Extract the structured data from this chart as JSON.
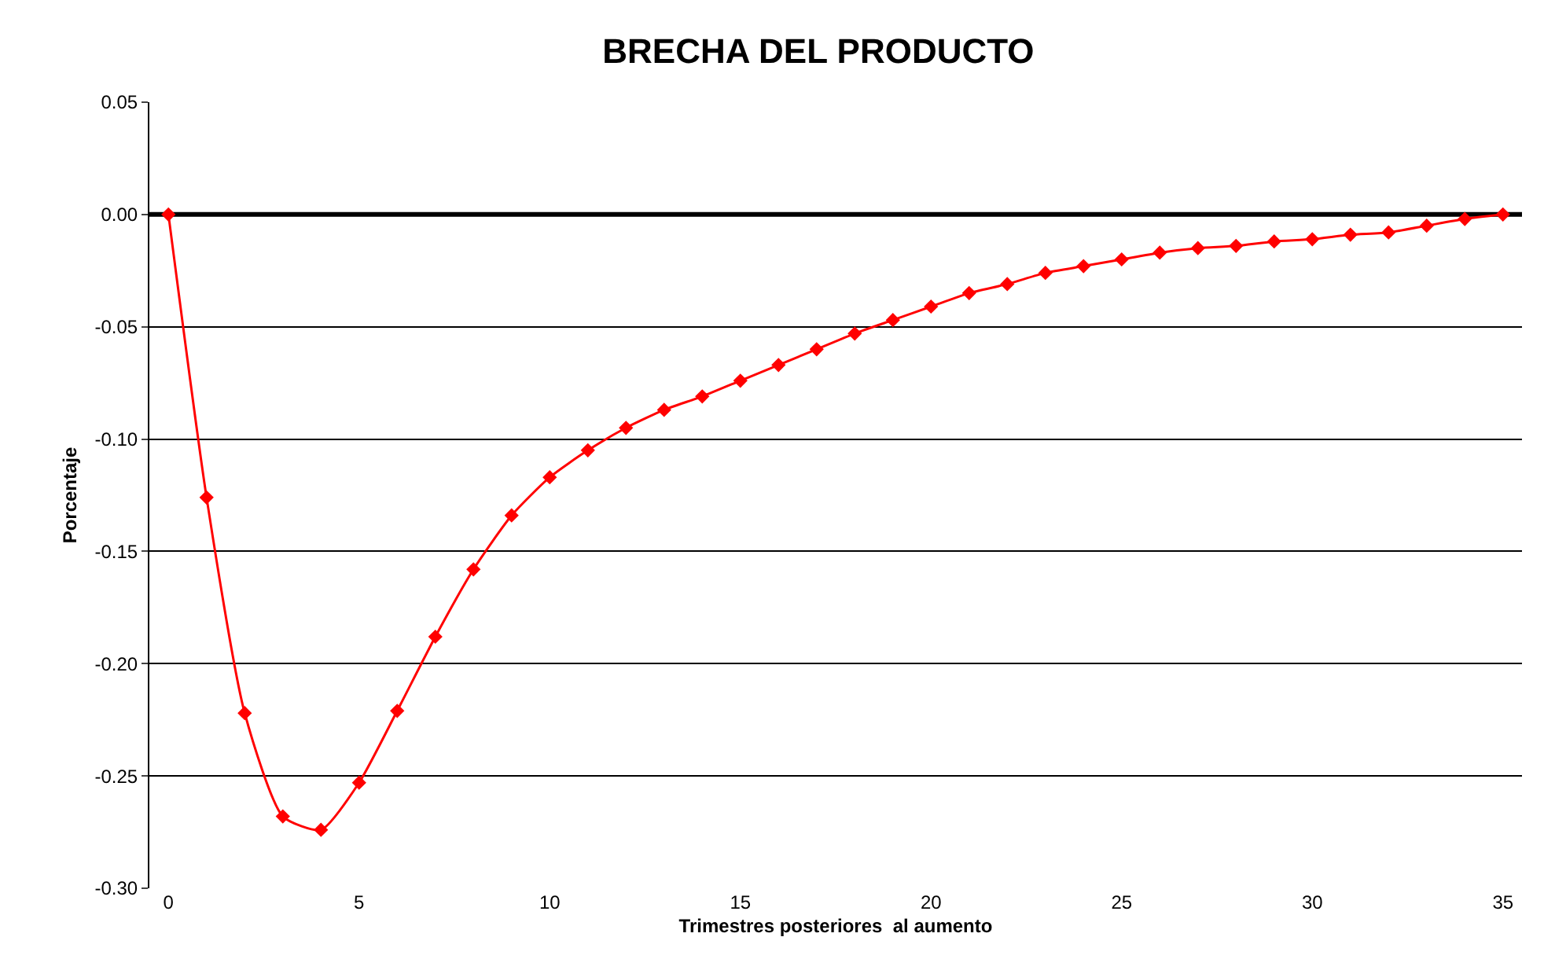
{
  "chart_data": {
    "type": "line",
    "title": "BRECHA DEL PRODUCTO",
    "xlabel": "Trimestres posteriores  al aumento",
    "ylabel": "Porcentaje",
    "x": [
      0,
      1,
      2,
      3,
      4,
      5,
      6,
      7,
      8,
      9,
      10,
      11,
      12,
      13,
      14,
      15,
      16,
      17,
      18,
      19,
      20,
      21,
      22,
      23,
      24,
      25,
      26,
      27,
      28,
      29,
      30,
      31,
      32,
      33,
      34,
      35
    ],
    "series": [
      {
        "color": "#ff0000",
        "values": [
          0,
          -0.126,
          -0.222,
          -0.268,
          -0.274,
          -0.253,
          -0.221,
          -0.188,
          -0.158,
          -0.134,
          -0.117,
          -0.105,
          -0.095,
          -0.087,
          -0.081,
          -0.074,
          -0.067,
          -0.06,
          -0.053,
          -0.047,
          -0.041,
          -0.035,
          -0.031,
          -0.026,
          -0.023,
          -0.02,
          -0.017,
          -0.015,
          -0.014,
          -0.012,
          -0.011,
          -0.009,
          -0.008,
          -0.005,
          -0.002,
          0
        ]
      }
    ],
    "xlim": [
      -0.5,
      35.5
    ],
    "xticks": [
      0,
      5,
      10,
      15,
      20,
      25,
      30,
      35
    ],
    "ylim": [
      -0.3,
      0.05
    ],
    "yticks": [
      {
        "value": -0.3,
        "label": "-0.30"
      },
      {
        "value": -0.25,
        "label": "-0.25"
      },
      {
        "value": -0.2,
        "label": "-0.20"
      },
      {
        "value": -0.15,
        "label": "-0.15"
      },
      {
        "value": -0.1,
        "label": "-0.10"
      },
      {
        "value": -0.05,
        "label": "-0.05"
      },
      {
        "value": 0,
        "label": "0.00"
      },
      {
        "value": 0.05,
        "label": "0.05"
      }
    ],
    "ref_lines": [
      {
        "axis": "y",
        "value": 0,
        "color": "#000000"
      }
    ],
    "grid": "y",
    "marker": "diamond",
    "line_style": "solid"
  }
}
